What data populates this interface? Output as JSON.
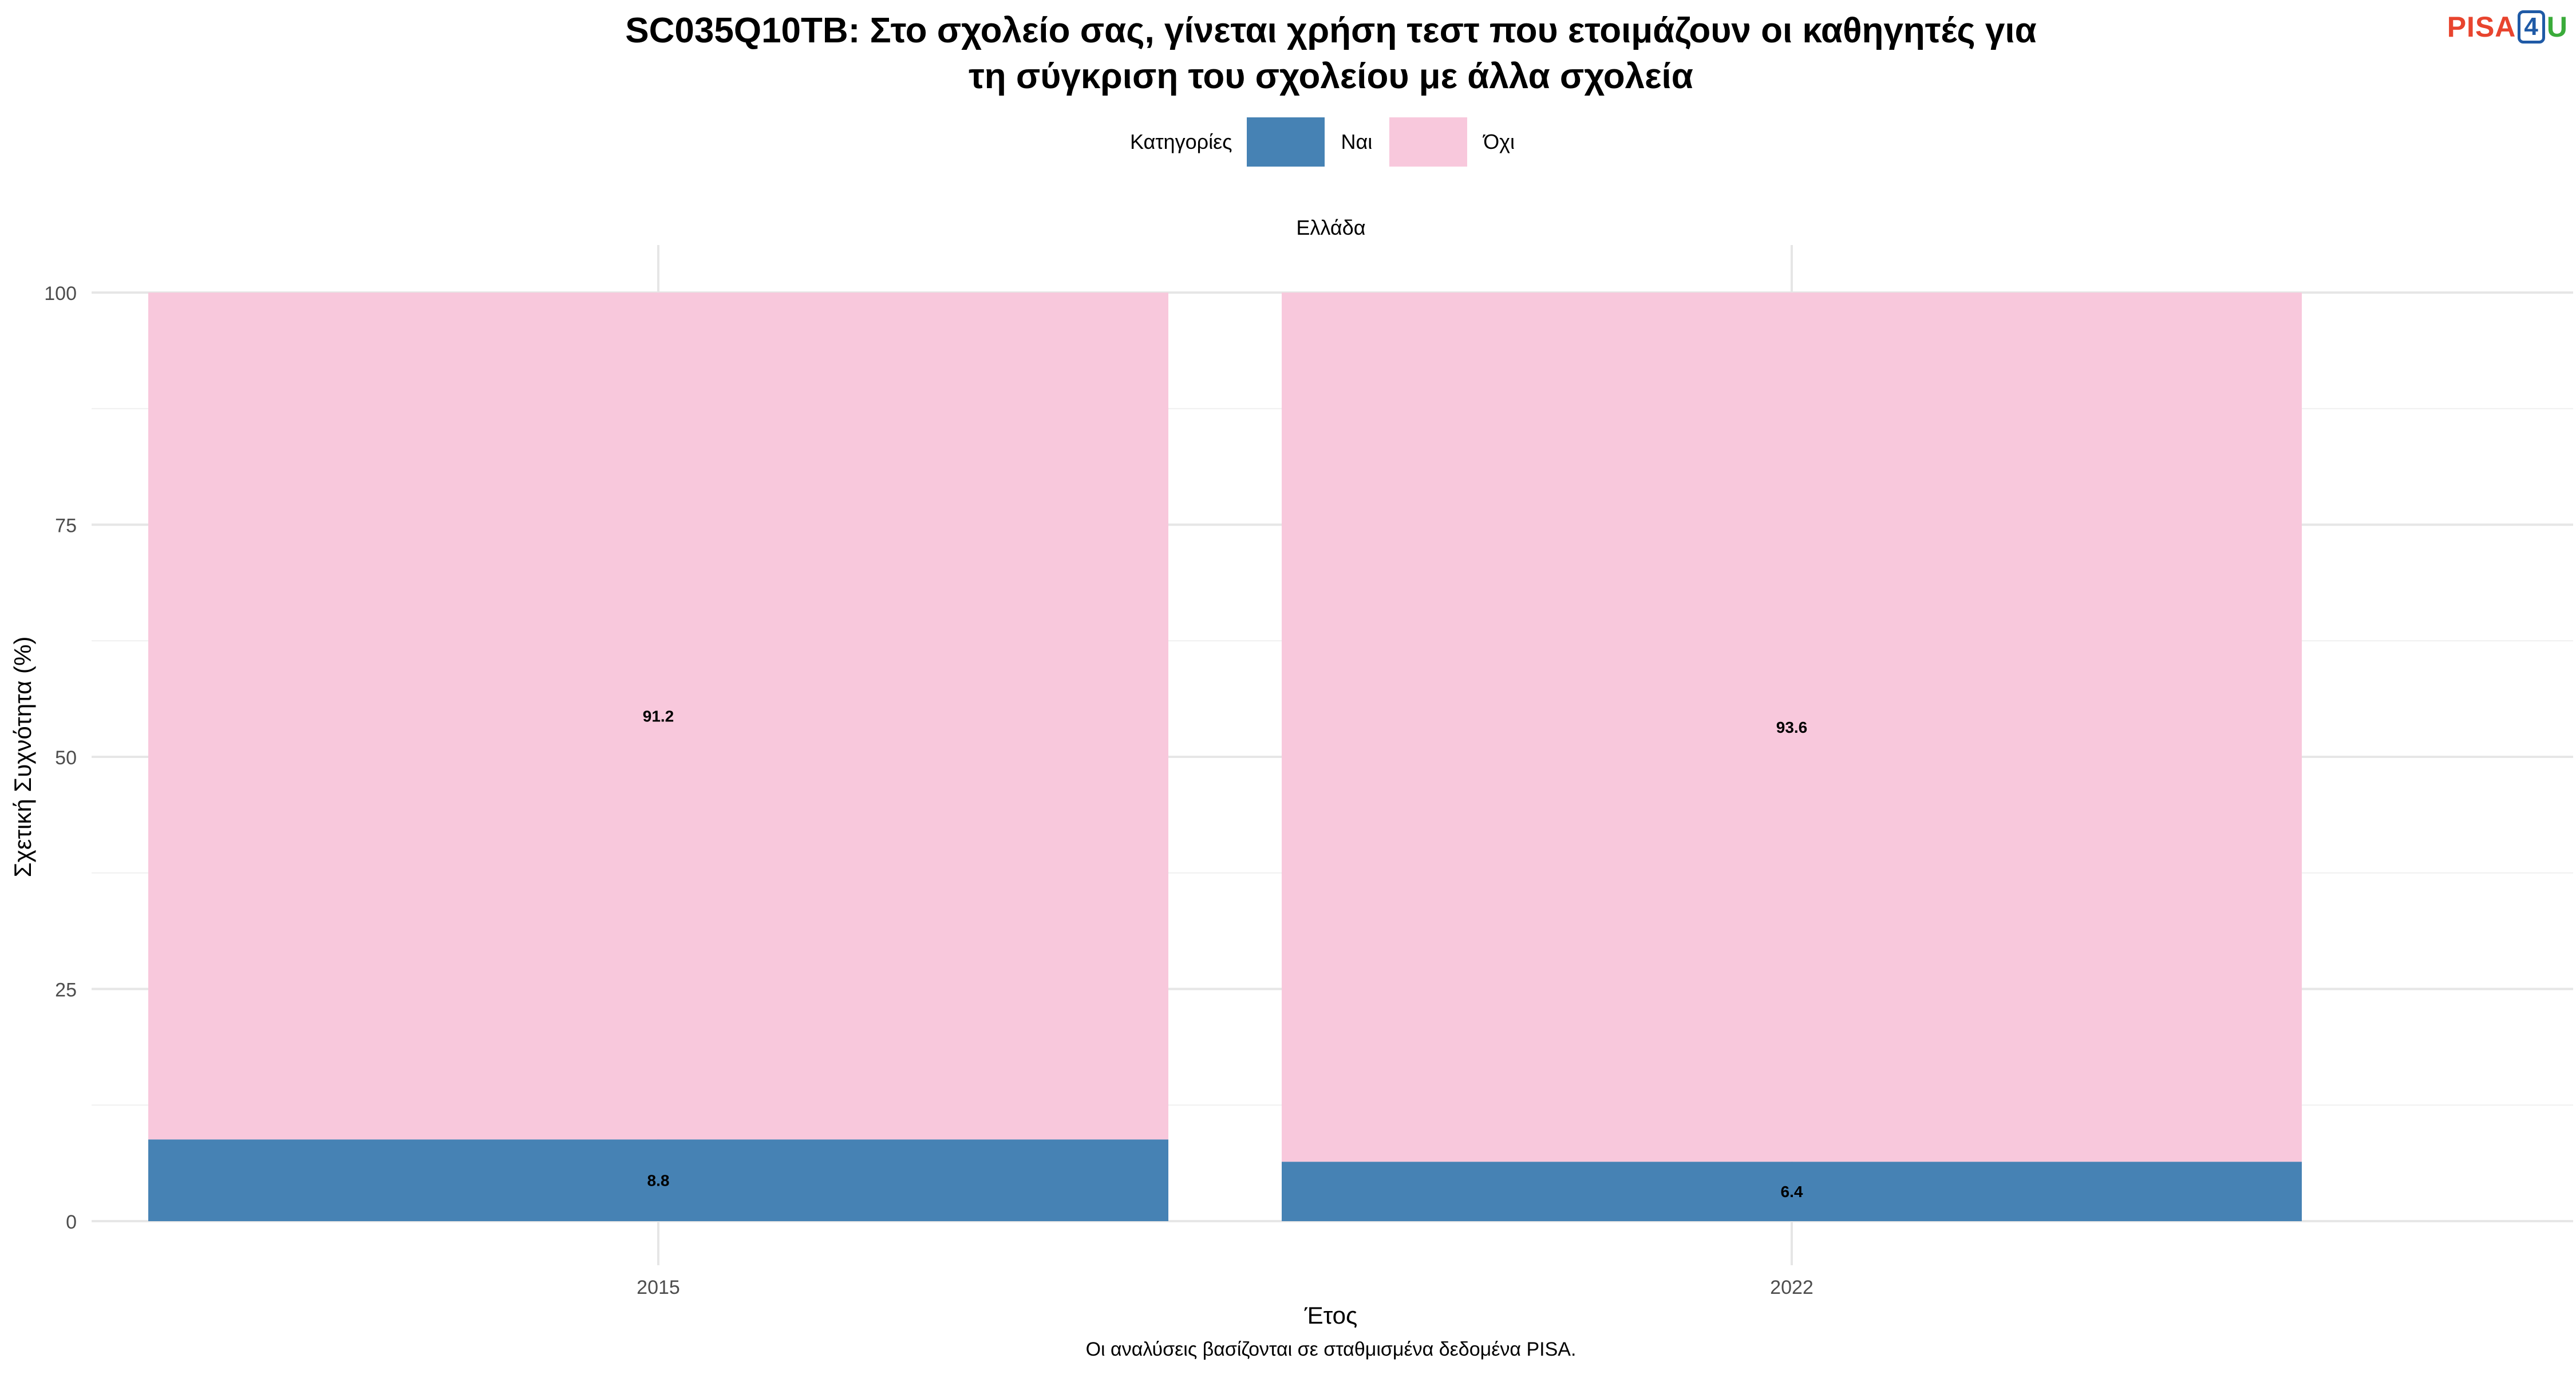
{
  "title_line1": "SC035Q10TB: Στο σχολείο σας, γίνεται χρήση τεστ που ετοιμάζουν οι καθηγητές για",
  "title_line2": "τη σύγκριση του σχολείου με άλλα σχολεία",
  "logo": {
    "pisa": "PISA",
    "four": "4",
    "u": "U"
  },
  "legend": {
    "title": "Κατηγορίες"
  },
  "facet_label": "Ελλάδα",
  "caption": "Οι αναλύσεις βασίζονται σε σταθμισμένα δεδομένα PISA.",
  "chart_data": {
    "type": "bar",
    "stacked": true,
    "categories": [
      "2015",
      "2022"
    ],
    "series": [
      {
        "name": "Ναι",
        "values": [
          8.8,
          6.4
        ],
        "color": "#4682b4"
      },
      {
        "name": "Όχι",
        "values": [
          91.2,
          93.6
        ],
        "color": "#f8c8dc"
      }
    ],
    "xlabel": "Έτος",
    "ylabel": "Σχετική Συχνότητα (%)",
    "ylim": [
      0,
      100
    ],
    "yticks": [
      0,
      25,
      50,
      75,
      100
    ],
    "grid": true,
    "legend_position": "top"
  }
}
